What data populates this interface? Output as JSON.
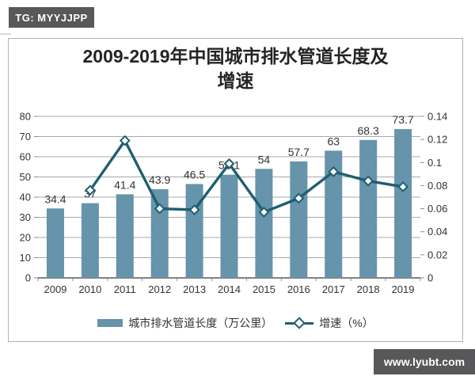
{
  "watermarks": {
    "top_left": "TG: MYYJJPP",
    "bottom_right": "www.lyubt.com"
  },
  "title": {
    "line1": "2009-2019年中国城市排水管道长度及",
    "line2": "增速"
  },
  "chart_data": {
    "type": "combo",
    "title": "2009-2019年中国城市排水管道长度及增速",
    "categories": [
      "2009",
      "2010",
      "2011",
      "2012",
      "2013",
      "2014",
      "2015",
      "2016",
      "2017",
      "2018",
      "2019"
    ],
    "series": [
      {
        "name": "城市排水管道长度（万公里）",
        "type": "bar",
        "axis": "left",
        "values": [
          34.4,
          37,
          41.4,
          43.9,
          46.5,
          51.1,
          54,
          57.7,
          63,
          68.3,
          73.7
        ],
        "labels": [
          "34.4",
          "37",
          "41.4",
          "43.9",
          "46.5",
          "51.1",
          "54",
          "57.7",
          "63",
          "68.3",
          "73.7"
        ]
      },
      {
        "name": "增速（%）",
        "type": "line",
        "axis": "right",
        "values": [
          null,
          0.076,
          0.119,
          0.06,
          0.059,
          0.099,
          0.057,
          0.069,
          0.092,
          0.084,
          0.079
        ]
      }
    ],
    "left_axis": {
      "min": 0,
      "max": 80,
      "step": 10,
      "labels": [
        "0",
        "10",
        "20",
        "30",
        "40",
        "50",
        "60",
        "70",
        "80"
      ]
    },
    "right_axis": {
      "min": 0,
      "max": 0.14,
      "step": 0.02,
      "labels": [
        "0",
        "0.02",
        "0.04",
        "0.06",
        "0.08",
        "0.1",
        "0.12",
        "0.14"
      ]
    },
    "grid": true,
    "legend_position": "bottom",
    "colors": {
      "bar": "#6694aa",
      "line": "#1e5f70",
      "marker_fill": "#ffffff",
      "grid": "#a8a8a8",
      "axis": "#595959",
      "tick": "#8c8c8c",
      "text": "#333333",
      "badge_bg": "#58585a"
    }
  }
}
